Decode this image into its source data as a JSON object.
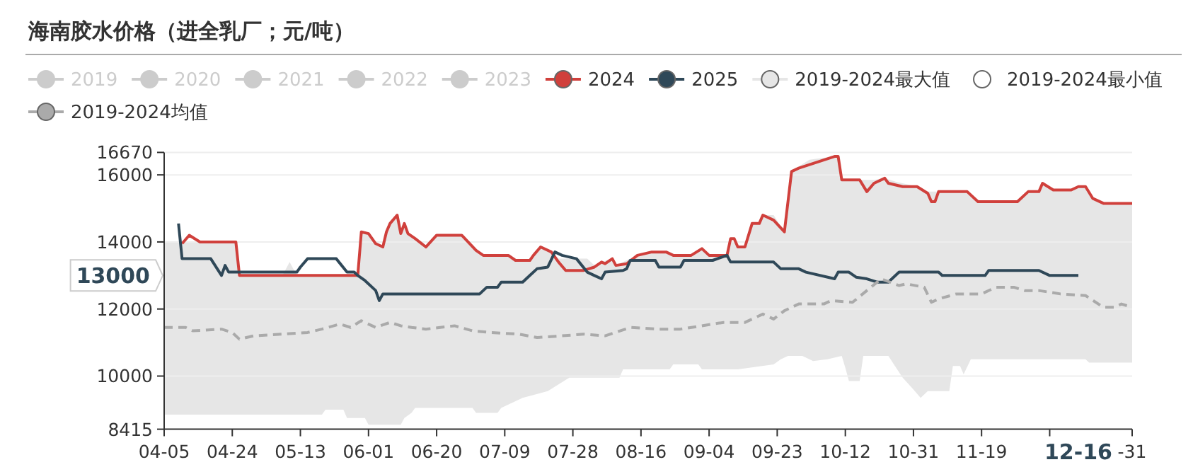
{
  "chart_data": {
    "type": "line",
    "title": "海南胶水价格（进全乳厂；元/吨）",
    "xlim": [
      "--04-05",
      "--12-31"
    ],
    "xticks": [
      {
        "value": "--04-05",
        "label": "04-05"
      },
      {
        "value": "--04-24",
        "label": "04-24"
      },
      {
        "value": "--05-13",
        "label": "05-13"
      },
      {
        "value": "--06-01",
        "label": "06-01"
      },
      {
        "value": "--06-20",
        "label": "06-20"
      },
      {
        "value": "--07-09",
        "label": "07-09"
      },
      {
        "value": "--07-28",
        "label": "07-28"
      },
      {
        "value": "--08-16",
        "label": "08-16"
      },
      {
        "value": "--09-04",
        "label": "09-04"
      },
      {
        "value": "--09-23",
        "label": "09-23"
      },
      {
        "value": "--10-12",
        "label": "10-12"
      },
      {
        "value": "--10-31",
        "label": "10-31"
      },
      {
        "value": "--11-19",
        "label": "11-19"
      },
      {
        "value": "--12-08",
        "label": null
      },
      {
        "value": "--12-31",
        "label": "-31"
      }
    ],
    "ylim": [
      8415,
      16670
    ],
    "yticks": [
      8415,
      10000,
      12000,
      14000,
      16000,
      16670
    ],
    "grid": "y",
    "legend": "top left",
    "annotations": [
      "13000",
      "12-16"
    ],
    "series": [
      {
        "name": "2019",
        "color": "#cccccc"
      },
      {
        "name": "2020",
        "color": "#cccccc"
      },
      {
        "name": "2021",
        "color": "#cccccc"
      },
      {
        "name": "2022",
        "color": "#cccccc"
      },
      {
        "name": "2023",
        "color": "#cccccc"
      },
      {
        "name": "2024",
        "color": "#d0403c",
        "x": [
          "--04-10",
          "--04-12",
          "--04-15",
          "--04-25",
          "--04-26",
          "--05-29",
          "--05-30",
          "--06-01",
          "--06-03",
          "--06-05",
          "--06-06",
          "--06-07",
          "--06-09",
          "--06-10",
          "--06-11",
          "--06-12",
          "--06-14",
          "--06-17",
          "--06-20",
          "--06-27",
          "--07-01",
          "--07-03",
          "--07-10",
          "--07-12",
          "--07-16",
          "--07-17",
          "--07-19",
          "--07-22",
          "--07-24",
          "--07-26",
          "--07-31",
          "--08-03",
          "--08-05",
          "--08-06",
          "--08-08",
          "--08-09",
          "--08-12",
          "--08-15",
          "--08-19",
          "--08-23",
          "--08-25",
          "--08-30",
          "--09-02",
          "--09-04",
          "--09-09",
          "--09-10",
          "--09-11",
          "--09-12",
          "--09-14",
          "--09-16",
          "--09-18",
          "--09-19",
          "--09-22",
          "--09-25",
          "--09-27",
          "--09-29",
          "--10-09",
          "--10-10",
          "--10-11",
          "--10-16",
          "--10-18",
          "--10-20",
          "--10-23",
          "--10-24",
          "--10-28",
          "--11-01",
          "--11-04",
          "--11-05",
          "--11-06",
          "--11-07",
          "--11-15",
          "--11-18",
          "--11-29",
          "--12-02",
          "--12-05",
          "--12-06",
          "--12-09",
          "--12-14",
          "--12-16",
          "--12-18",
          "--12-20",
          "--12-23",
          "--12-31"
        ],
        "values": [
          13950,
          14200,
          14000,
          14000,
          13000,
          13000,
          14300,
          14250,
          13950,
          13850,
          14300,
          14550,
          14800,
          14250,
          14550,
          14250,
          14100,
          13850,
          14200,
          14200,
          13750,
          13600,
          13600,
          13450,
          13450,
          13600,
          13850,
          13700,
          13400,
          13150,
          13150,
          13250,
          13400,
          13350,
          13500,
          13300,
          13350,
          13600,
          13700,
          13700,
          13600,
          13600,
          13800,
          13600,
          13600,
          14100,
          14100,
          13850,
          13850,
          14550,
          14550,
          14800,
          14650,
          14300,
          16100,
          16200,
          16550,
          16550,
          15850,
          15850,
          15500,
          15750,
          15900,
          15750,
          15650,
          15650,
          15450,
          15200,
          15200,
          15500,
          15500,
          15200,
          15200,
          15500,
          15500,
          15750,
          15550,
          15550,
          15650,
          15650,
          15300,
          15150,
          15150
        ]
      },
      {
        "name": "2025",
        "color": "#2f4858",
        "x": [
          "--04-09",
          "--04-10",
          "--04-18",
          "--04-21",
          "--04-22",
          "--04-23",
          "--05-12",
          "--05-13",
          "--05-15",
          "--05-23",
          "--05-26",
          "--05-28",
          "--05-29",
          "--05-31",
          "--06-03",
          "--06-04",
          "--06-05",
          "--07-02",
          "--07-04",
          "--07-07",
          "--07-08",
          "--07-14",
          "--07-16",
          "--07-18",
          "--07-21",
          "--07-23",
          "--07-25",
          "--07-29",
          "--08-01",
          "--08-03",
          "--08-05",
          "--08-06",
          "--08-11",
          "--08-12",
          "--08-13",
          "--08-20",
          "--08-21",
          "--08-27",
          "--08-28",
          "--09-05",
          "--09-09",
          "--09-10",
          "--09-22",
          "--09-24",
          "--09-29",
          "--10-01",
          "--10-09",
          "--10-10",
          "--10-13",
          "--10-15",
          "--10-18",
          "--10-21",
          "--10-24",
          "--10-27",
          "--11-07",
          "--11-08",
          "--11-20",
          "--11-21",
          "--12-05",
          "--12-08",
          "--12-16"
        ],
        "values": [
          14550,
          13500,
          13500,
          13000,
          13300,
          13100,
          13100,
          13250,
          13500,
          13500,
          13100,
          13100,
          13000,
          12850,
          12550,
          12250,
          12450,
          12450,
          12650,
          12650,
          12800,
          12800,
          13000,
          13200,
          13250,
          13700,
          13600,
          13500,
          13100,
          13000,
          12900,
          13100,
          13150,
          13200,
          13450,
          13450,
          13250,
          13250,
          13450,
          13450,
          13600,
          13400,
          13400,
          13200,
          13200,
          13100,
          12900,
          13100,
          13100,
          12950,
          12900,
          12800,
          12800,
          13100,
          13100,
          13000,
          13000,
          13150,
          13150,
          13000,
          13000
        ]
      },
      {
        "name": "2019-2024最大值",
        "type": "area",
        "color": "#e6e6e6",
        "x": [
          "--04-05",
          "--04-25",
          "--04-26",
          "--05-08",
          "--05-10",
          "--05-12",
          "--05-29",
          "--05-30",
          "--06-01",
          "--06-03",
          "--06-05",
          "--06-06",
          "--06-07",
          "--06-09",
          "--06-10",
          "--06-11",
          "--06-12",
          "--06-14",
          "--06-17",
          "--06-20",
          "--06-27",
          "--07-01",
          "--07-03",
          "--07-10",
          "--07-12",
          "--07-16",
          "--07-17",
          "--07-19",
          "--07-22",
          "--07-24",
          "--08-01",
          "--08-03",
          "--08-05",
          "--08-08",
          "--08-09",
          "--08-13",
          "--08-15",
          "--08-19",
          "--08-23",
          "--08-25",
          "--08-30",
          "--09-02",
          "--09-04",
          "--09-09",
          "--09-10",
          "--09-12",
          "--09-14",
          "--09-16",
          "--09-18",
          "--09-19",
          "--09-22",
          "--09-25",
          "--09-27",
          "--09-29",
          "--10-02",
          "--10-09",
          "--10-10",
          "--10-11",
          "--10-20",
          "--10-23",
          "--10-26",
          "--11-01",
          "--11-04",
          "--11-15",
          "--11-18",
          "--11-29",
          "--12-02",
          "--12-05",
          "--12-06",
          "--12-09",
          "--12-14",
          "--12-16",
          "--12-18",
          "--12-20",
          "--12-23",
          "--12-31"
        ],
        "values": [
          14000,
          14000,
          13000,
          13000,
          13400,
          13000,
          13000,
          14300,
          14250,
          13950,
          13850,
          14300,
          14550,
          14800,
          14250,
          14550,
          14250,
          14100,
          13850,
          14200,
          14200,
          13750,
          13600,
          13600,
          13450,
          13450,
          13600,
          13850,
          13700,
          13500,
          13500,
          13300,
          13400,
          13500,
          13300,
          13500,
          13600,
          13700,
          13700,
          13600,
          13600,
          13800,
          13600,
          13600,
          14100,
          13850,
          13850,
          14550,
          14550,
          14800,
          14800,
          14300,
          16100,
          16250,
          16450,
          16550,
          16550,
          15850,
          15850,
          15900,
          15800,
          15650,
          15500,
          15500,
          15200,
          15200,
          15500,
          15500,
          15750,
          15550,
          15550,
          15650,
          15650,
          15300,
          15150,
          15150
        ]
      },
      {
        "name": "2019-2024最小值",
        "type": "area",
        "color": "#ffffff",
        "x": [
          "--04-05",
          "--05-19",
          "--05-20",
          "--05-25",
          "--05-26",
          "--05-31",
          "--06-01",
          "--06-10",
          "--06-11",
          "--06-13",
          "--06-14",
          "--06-30",
          "--07-01",
          "--07-07",
          "--07-08",
          "--07-14",
          "--07-21",
          "--07-27",
          "--08-10",
          "--08-11",
          "--08-24",
          "--08-25",
          "--09-01",
          "--09-02",
          "--09-12",
          "--09-22",
          "--09-24",
          "--09-26",
          "--09-30",
          "--10-03",
          "--10-07",
          "--10-11",
          "--10-12",
          "--10-13",
          "--10-16",
          "--10-17",
          "--10-24",
          "--10-28",
          "--10-31",
          "--11-02",
          "--11-04",
          "--11-10",
          "--11-11",
          "--11-13",
          "--11-14",
          "--11-16",
          "--12-18",
          "--12-19",
          "--12-31"
        ],
        "values": [
          8850,
          8850,
          9000,
          9000,
          8750,
          8750,
          8550,
          8550,
          8750,
          8900,
          9050,
          9050,
          8900,
          8900,
          9050,
          9350,
          9550,
          9950,
          9950,
          10200,
          10200,
          10350,
          10350,
          10200,
          10200,
          10350,
          10500,
          10600,
          10600,
          10450,
          10500,
          10600,
          10250,
          9850,
          9850,
          10600,
          10600,
          9950,
          9600,
          9350,
          9550,
          9550,
          10300,
          10300,
          10050,
          10500,
          10500,
          10400,
          10400
        ]
      },
      {
        "name": "2019-2024均值",
        "line_style": "dashed",
        "color": "#aaaaaa",
        "x": [
          "--04-05",
          "--04-11",
          "--04-13",
          "--04-21",
          "--04-24",
          "--04-26",
          "--04-30",
          "--05-08",
          "--05-15",
          "--05-19",
          "--05-24",
          "--05-27",
          "--05-30",
          "--06-03",
          "--06-07",
          "--06-10",
          "--06-13",
          "--06-17",
          "--06-21",
          "--06-25",
          "--06-30",
          "--07-05",
          "--07-13",
          "--07-18",
          "--07-25",
          "--07-31",
          "--08-06",
          "--08-13",
          "--08-21",
          "--08-27",
          "--09-02",
          "--09-08",
          "--09-14",
          "--09-19",
          "--09-22",
          "--09-25",
          "--09-29",
          "--10-06",
          "--10-08",
          "--10-14",
          "--10-18",
          "--10-22",
          "--10-27",
          "--10-29",
          "--11-03",
          "--11-05",
          "--11-07",
          "--11-12",
          "--11-19",
          "--11-23",
          "--11-28",
          "--12-01",
          "--12-05",
          "--12-11",
          "--12-18",
          "--12-23",
          "--12-26",
          "--12-28",
          "--12-31"
        ],
        "values": [
          11450,
          11450,
          11350,
          11400,
          11300,
          11100,
          11200,
          11250,
          11300,
          11400,
          11550,
          11450,
          11650,
          11450,
          11600,
          11500,
          11450,
          11400,
          11450,
          11500,
          11350,
          11300,
          11250,
          11150,
          11200,
          11250,
          11200,
          11450,
          11400,
          11400,
          11500,
          11600,
          11600,
          11850,
          11700,
          11950,
          12150,
          12150,
          12250,
          12200,
          12550,
          12900,
          12700,
          12750,
          12650,
          12200,
          12300,
          12450,
          12450,
          12650,
          12650,
          12550,
          12550,
          12450,
          12400,
          12050,
          12050,
          12150,
          12050
        ]
      }
    ]
  }
}
